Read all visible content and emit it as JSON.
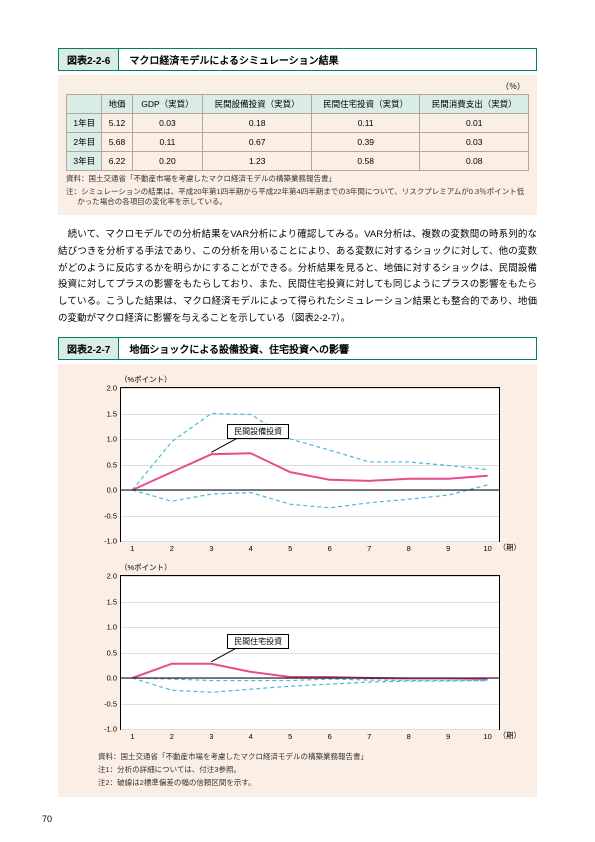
{
  "figure1": {
    "num": "図表2-2-6",
    "caption": "マクロ経済モデルによるシミュレーション結果",
    "unit": "（％）",
    "columns": [
      "",
      "地価",
      "GDP（実質）",
      "民間設備投資（実質）",
      "民間住宅投資（実質）",
      "民間消費支出（実質）"
    ],
    "rows": [
      [
        "1年目",
        "5.12",
        "0.03",
        "0.18",
        "0.11",
        "0.01"
      ],
      [
        "2年目",
        "5.68",
        "0.11",
        "0.67",
        "0.39",
        "0.03"
      ],
      [
        "3年目",
        "6.22",
        "0.20",
        "1.23",
        "0.58",
        "0.08"
      ]
    ],
    "note1": "資料：国土交通省「不動産市場を考慮したマクロ経済モデルの構築業務報告書」",
    "note2": "注：シミュレーションの結果は、平成20年第1四半期から平成22年第4四半期までの3年間について、リスクプレミアムが0.3％ポイント低かった場合の各項目の変化率を示している。"
  },
  "paragraph": "　続いて、マクロモデルでの分析結果をVAR分析により確認してみる。VAR分析は、複数の変数間の時系列的な結びつきを分析する手法であり、この分析を用いることにより、ある変数に対するショックに対して、他の変数がどのように反応するかを明らかにすることができる。分析結果を見ると、地価に対するショックは、民間設備投資に対してプラスの影響をもたらしており、また、民間住宅投資に対しても同じようにプラスの影響をもたらしている。こうした結果は、マクロ経済モデルによって得られたシミュレーション結果とも整合的であり、地価の変動がマクロ経済に影響を与えることを示している（図表2-2-7）。",
  "figure2": {
    "num": "図表2-2-7",
    "caption": "地価ショックによる設備投資、住宅投資への影響",
    "ylabel": "（%ポイント）",
    "yticks": [
      "2.0",
      "1.5",
      "1.0",
      "0.5",
      "0.0",
      "-0.5",
      "-1.0"
    ],
    "ylim": [
      -1.0,
      2.0
    ],
    "xticks": [
      "1",
      "2",
      "3",
      "4",
      "5",
      "6",
      "7",
      "8",
      "9",
      "10"
    ],
    "xunit": "（期）",
    "chart1": {
      "annotation": "民間設備投資",
      "main": [
        0.0,
        0.35,
        0.7,
        0.72,
        0.35,
        0.2,
        0.18,
        0.22,
        0.22,
        0.28
      ],
      "upper": [
        0.0,
        0.95,
        1.5,
        1.48,
        1.0,
        0.78,
        0.55,
        0.55,
        0.48,
        0.4
      ],
      "lower": [
        0.0,
        -0.22,
        -0.08,
        -0.05,
        -0.28,
        -0.35,
        -0.25,
        -0.18,
        -0.1,
        0.1
      ],
      "main_color": "#e64d8c",
      "band_color": "#4db8d9"
    },
    "chart2": {
      "annotation": "民間住宅投資",
      "main": [
        0.0,
        0.28,
        0.28,
        0.12,
        0.02,
        0.02,
        0.0,
        -0.01,
        -0.01,
        -0.02
      ],
      "upper": [
        0.0,
        -0.02,
        -0.05,
        -0.05,
        -0.05,
        -0.02,
        -0.04,
        -0.05,
        -0.05,
        -0.05
      ],
      "lower": [
        0.0,
        -0.24,
        -0.28,
        -0.22,
        -0.16,
        -0.12,
        -0.08,
        -0.06,
        -0.06,
        -0.05
      ],
      "main_color": "#e64d8c",
      "band_color": "#4db8d9"
    },
    "note1": "資料：国土交通省「不動産市場を考慮したマクロ経済モデルの構築業務報告書」",
    "note2": "注1：分析の詳細については、付注3参照。",
    "note3": "注2：破線は2標準偏差の幅の信頼区間を示す。"
  },
  "pageNumber": "70"
}
